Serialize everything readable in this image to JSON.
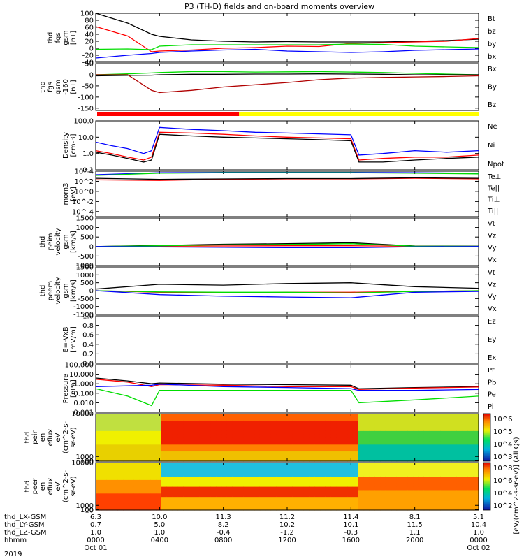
{
  "title": "P3 (TH-D) fields and on-board moments overview",
  "year": "2019",
  "colors": {
    "black": "#000000",
    "red": "#ff0000",
    "green": "#00dd00",
    "blue": "#0000ff",
    "darkred": "#b00000",
    "yellow": "#ffff00"
  },
  "ephemeris": {
    "row_labels": [
      "thd_LX-GSM",
      "thd_LY-GSM",
      "thd_LZ-GSM",
      "hhmm"
    ],
    "ticks": [
      {
        "lx": "6.3",
        "ly": "0.7",
        "lz": "1.0",
        "hhmm": "0000",
        "date": "Oct 01"
      },
      {
        "lx": "10.0",
        "ly": "5.0",
        "lz": "1.0",
        "hhmm": "0400",
        "date": ""
      },
      {
        "lx": "11.3",
        "ly": "8.2",
        "lz": "-0.4",
        "hhmm": "0800",
        "date": ""
      },
      {
        "lx": "11.2",
        "ly": "10.2",
        "lz": "-1.2",
        "hhmm": "1200",
        "date": ""
      },
      {
        "lx": "11.4",
        "ly": "10.1",
        "lz": "-0.3",
        "hhmm": "1600",
        "date": ""
      },
      {
        "lx": "8.1",
        "ly": "11.5",
        "lz": "1.1",
        "hhmm": "2000",
        "date": ""
      },
      {
        "lx": "5.1",
        "ly": "10.4",
        "lz": "1.0",
        "hhmm": "0000",
        "date": "Oct 02"
      }
    ]
  },
  "colorbar_label": "[eV/(cm^2-s-sr-eV)] (All Qs)",
  "chart_data": [
    {
      "id": "fgs",
      "type": "line",
      "ylabel": [
        "thd",
        "fgs",
        "gsm",
        "[nT]"
      ],
      "ylim": [
        -40,
        100
      ],
      "yticks": [
        "100",
        "80",
        "60",
        "40",
        "20",
        "0",
        "-20",
        "-40"
      ],
      "ytick_values": [
        100,
        80,
        60,
        40,
        20,
        0,
        -20,
        -40
      ],
      "x": [
        0,
        2,
        3.5,
        4,
        6,
        8,
        10,
        12,
        14,
        16,
        18,
        20,
        22,
        24
      ],
      "series": [
        {
          "name": "Bt",
          "color": "black",
          "values": [
            100,
            72,
            40,
            34,
            24,
            20,
            18,
            19,
            18,
            18,
            18,
            20,
            22,
            26
          ]
        },
        {
          "name": "bz",
          "color": "red",
          "values": [
            62,
            35,
            -10,
            -8,
            -5,
            0,
            2,
            6,
            5,
            14,
            16,
            18,
            20,
            28
          ]
        },
        {
          "name": "by",
          "color": "green",
          "values": [
            -3,
            -2,
            -4,
            6,
            10,
            10,
            10,
            10,
            10,
            12,
            11,
            6,
            4,
            2
          ]
        },
        {
          "name": "bx",
          "color": "blue",
          "values": [
            -28,
            -20,
            -15,
            -12,
            -8,
            -5,
            -3,
            -8,
            -10,
            -12,
            -10,
            -6,
            -4,
            -2
          ]
        }
      ]
    },
    {
      "id": "fgs_sm",
      "type": "line",
      "ylabel": [
        "thd",
        "fgs",
        "gsm",
        "-160",
        "[nT]"
      ],
      "ylim": [
        -160,
        50
      ],
      "yticks": [
        "50",
        "0",
        "-50",
        "-100",
        "-150"
      ],
      "ytick_values": [
        50,
        0,
        -50,
        -100,
        -150
      ],
      "x": [
        0,
        2,
        3.5,
        4,
        6,
        8,
        10,
        12,
        14,
        16,
        18,
        20,
        22,
        24
      ],
      "series": [
        {
          "name": "Bx",
          "color": "green",
          "values": [
            0,
            4,
            8,
            10,
            14,
            14,
            12,
            13,
            14,
            12,
            10,
            6,
            3,
            0
          ]
        },
        {
          "name": "By",
          "color": "black",
          "values": [
            -5,
            -3,
            -2,
            0,
            2,
            2,
            3,
            3,
            4,
            3,
            2,
            0,
            0,
            0
          ]
        },
        {
          "name": "Bz",
          "color": "darkred",
          "values": [
            0,
            0,
            -70,
            -80,
            -70,
            -55,
            -45,
            -35,
            -22,
            -15,
            -12,
            -10,
            -8,
            -5
          ]
        }
      ]
    },
    {
      "id": "density",
      "type": "line",
      "log": true,
      "ylabel": [
        "Density",
        "[cm-3]"
      ],
      "ylim": [
        0.1,
        100
      ],
      "yticks": [
        "100.0",
        "10.0",
        "1.0",
        "0.1"
      ],
      "ytick_values": [
        100,
        10,
        1,
        0.1
      ],
      "x": [
        0,
        1,
        2,
        3,
        3.5,
        4,
        6,
        8,
        10,
        12,
        14,
        16,
        16.5,
        18,
        20,
        22,
        24
      ],
      "series": [
        {
          "name": "Ne",
          "color": "red",
          "values": [
            1.5,
            1.0,
            0.6,
            0.4,
            0.6,
            20,
            18,
            15,
            12,
            10,
            9,
            8,
            0.4,
            0.5,
            0.6,
            0.6,
            0.8
          ]
        },
        {
          "name": "Ni",
          "color": "black",
          "values": [
            1.2,
            0.8,
            0.5,
            0.3,
            0.4,
            15,
            12,
            10,
            9,
            8,
            7,
            6,
            0.3,
            0.3,
            0.4,
            0.5,
            0.6
          ]
        },
        {
          "name": "Npot",
          "color": "blue",
          "values": [
            5,
            3,
            2,
            1,
            1.5,
            40,
            30,
            25,
            20,
            18,
            16,
            14,
            0.8,
            1.0,
            1.5,
            1.2,
            1.5
          ]
        }
      ]
    },
    {
      "id": "temp",
      "type": "line",
      "log": true,
      "ylabel": [
        "mom3",
        "[eV]"
      ],
      "ylim": [
        1e-05,
        10000
      ],
      "yticks": [
        "10^4",
        "10^2",
        "10^0",
        "10^-2",
        "10^-4"
      ],
      "ytick_values": [
        10000,
        100,
        1,
        0.01,
        0.0001
      ],
      "x": [
        0,
        4,
        8,
        12,
        16,
        20,
        24
      ],
      "series": [
        {
          "name": "Te⊥",
          "color": "red",
          "values": [
            200,
            150,
            250,
            300,
            300,
            400,
            300
          ]
        },
        {
          "name": "Te||",
          "color": "black",
          "values": [
            400,
            250,
            300,
            350,
            350,
            500,
            400
          ]
        },
        {
          "name": "Ti⊥",
          "color": "blue",
          "values": [
            2000,
            5000,
            6000,
            6000,
            6000,
            5000,
            4000
          ]
        },
        {
          "name": "Ti||",
          "color": "green",
          "values": [
            1500,
            4000,
            5000,
            5000,
            5000,
            4000,
            3000
          ]
        }
      ]
    },
    {
      "id": "ion_velocity",
      "type": "line",
      "ylabel": [
        "thd",
        "peim",
        "velocity",
        "gsm",
        "[km/s]"
      ],
      "ylim": [
        -1000,
        1500
      ],
      "yticks": [
        "1500",
        "1000",
        "500",
        "0",
        "-500",
        "-1000"
      ],
      "ytick_values": [
        1500,
        1000,
        500,
        0,
        -500,
        -1000
      ],
      "x": [
        0,
        4,
        8,
        12,
        16,
        20,
        24
      ],
      "series": [
        {
          "name": "Vt",
          "color": "black",
          "values": [
            0,
            60,
            120,
            150,
            200,
            30,
            20
          ]
        },
        {
          "name": "Vz",
          "color": "red",
          "values": [
            0,
            20,
            30,
            40,
            40,
            10,
            0
          ]
        },
        {
          "name": "Vy",
          "color": "green",
          "values": [
            0,
            40,
            90,
            110,
            150,
            20,
            10
          ]
        },
        {
          "name": "Vx",
          "color": "blue",
          "values": [
            0,
            -20,
            -40,
            -60,
            -60,
            -10,
            0
          ]
        }
      ]
    },
    {
      "id": "electron_velocity",
      "type": "line",
      "ylabel": [
        "thd",
        "peem",
        "velocity",
        "gsm",
        "[km/s]"
      ],
      "ylim": [
        -1500,
        1500
      ],
      "yticks": [
        "1500",
        "1000",
        "500",
        "0",
        "-500",
        "-1000",
        "-1500"
      ],
      "ytick_values": [
        1500,
        1000,
        500,
        0,
        -500,
        -1000,
        -1500
      ],
      "x": [
        0,
        4,
        8,
        12,
        16,
        20,
        24
      ],
      "series": [
        {
          "name": "Vt",
          "color": "black",
          "values": [
            100,
            400,
            350,
            450,
            500,
            250,
            150
          ]
        },
        {
          "name": "Vz",
          "color": "red",
          "values": [
            0,
            -100,
            -150,
            -100,
            -100,
            -50,
            0
          ]
        },
        {
          "name": "Vy",
          "color": "green",
          "values": [
            0,
            -80,
            -100,
            -100,
            -150,
            -50,
            0
          ]
        },
        {
          "name": "Vx",
          "color": "blue",
          "values": [
            0,
            -250,
            -350,
            -400,
            -450,
            -100,
            -50
          ]
        }
      ]
    },
    {
      "id": "efield",
      "type": "line",
      "ylabel": [
        "E=-VxB",
        "[mV/m]"
      ],
      "ylim": [
        0,
        1.0
      ],
      "yticks": [
        "1.0",
        "0.8",
        "0.6",
        "0.4",
        "0.2",
        "0.0"
      ],
      "ytick_values": [
        1.0,
        0.8,
        0.6,
        0.4,
        0.2,
        0.0
      ],
      "series": [
        {
          "name": "Ez",
          "color": "red",
          "values": []
        },
        {
          "name": "Ey",
          "color": "green",
          "values": []
        },
        {
          "name": "Ex",
          "color": "blue",
          "values": []
        }
      ]
    },
    {
      "id": "pressure",
      "type": "line",
      "log": true,
      "ylabel": [
        "Pressure",
        "[nPa]"
      ],
      "ylim": [
        0.001,
        100
      ],
      "yticks": [
        "100.000",
        "10.000",
        "1.000",
        "0.100",
        "0.010",
        "0.001"
      ],
      "ytick_values": [
        100,
        10,
        1,
        0.1,
        0.01,
        0.001
      ],
      "x": [
        0,
        2,
        3.5,
        4,
        8,
        12,
        16,
        16.5,
        20,
        24
      ],
      "series": [
        {
          "name": "Pt",
          "color": "black",
          "values": [
            4,
            2,
            1,
            1.2,
            0.9,
            0.8,
            0.7,
            0.3,
            0.4,
            0.5
          ]
        },
        {
          "name": "Pb",
          "color": "red",
          "values": [
            3,
            1.5,
            0.5,
            0.8,
            0.7,
            0.5,
            0.5,
            0.25,
            0.35,
            0.45
          ]
        },
        {
          "name": "Pe",
          "color": "green",
          "values": [
            0.3,
            0.05,
            0.005,
            0.2,
            0.2,
            0.2,
            0.2,
            0.01,
            0.02,
            0.05
          ]
        },
        {
          "name": "Pi",
          "color": "blue",
          "values": [
            0.5,
            0.6,
            0.7,
            0.9,
            0.5,
            0.4,
            0.3,
            0.2,
            0.2,
            0.25
          ]
        }
      ]
    },
    {
      "id": "ion_spectrogram",
      "type": "heatmap",
      "ylabel": [
        "thd",
        "peir",
        "en",
        "eflux",
        "eV",
        "(cm^2-s-",
        "sr-eV)"
      ],
      "ylim": [
        10,
        10000
      ],
      "yticks": [
        "10000",
        "1000",
        "100",
        "10"
      ],
      "ytick_values": [
        10000,
        1000,
        100,
        10
      ],
      "colorbar_ticks": [
        "10^6",
        "10^5",
        "10^4",
        "10^3"
      ],
      "x": [
        0,
        2,
        3.5,
        4,
        8,
        12,
        16,
        16.5,
        20,
        24
      ]
    },
    {
      "id": "electron_spectrogram",
      "type": "heatmap",
      "ylabel": [
        "thd",
        "peer",
        "en",
        "eflux",
        "eV",
        "(cm^2-s-",
        "sr-eV)"
      ],
      "ylim": [
        10,
        10000
      ],
      "yticks": [
        "10000",
        "1000",
        "100",
        "10"
      ],
      "ytick_values": [
        10000,
        1000,
        100,
        10
      ],
      "colorbar_ticks": [
        "10^8",
        "10^6",
        "10^4",
        "10^2"
      ],
      "x": [
        0,
        2,
        3.5,
        4,
        8,
        12,
        16,
        16.5,
        20,
        24
      ]
    }
  ]
}
